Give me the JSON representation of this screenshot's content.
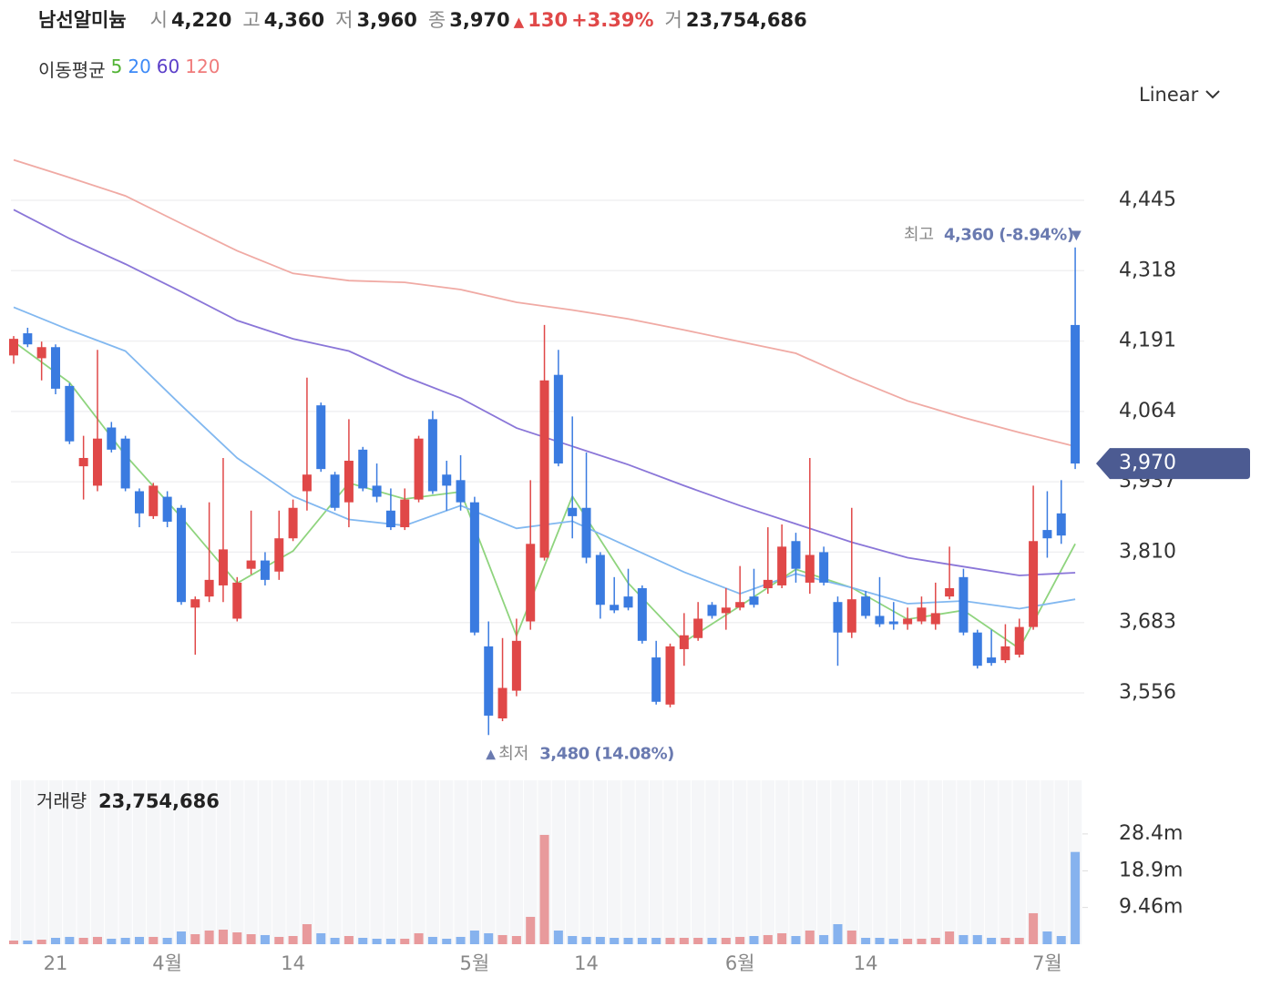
{
  "header": {
    "name": "남선알미늄",
    "quotes": [
      {
        "label": "시",
        "value": "4,220"
      },
      {
        "label": "고",
        "value": "4,360"
      },
      {
        "label": "저",
        "value": "3,960"
      },
      {
        "label": "종",
        "value": "3,970"
      }
    ],
    "change": "130",
    "change_rate": "+3.39%",
    "volume": {
      "label": "거",
      "value": "23,754,686"
    },
    "scale": "Linear"
  },
  "chart_data": [
    {
      "type": "candlestick",
      "legend_title": "이동평균",
      "up_color": "#e04848",
      "down_color": "#3a7be0",
      "ylim": [
        3418,
        4560
      ],
      "yticks": [
        {
          "value": 3556,
          "label": "3,556"
        },
        {
          "value": 3683,
          "label": "3,683"
        },
        {
          "value": 3810,
          "label": "3,810"
        },
        {
          "value": 3937,
          "label": "3,937"
        },
        {
          "value": 4064,
          "label": "4,064"
        },
        {
          "value": 4191,
          "label": "4,191"
        },
        {
          "value": 4318,
          "label": "4,318"
        },
        {
          "value": 4445,
          "label": "4,445"
        }
      ],
      "grid": true,
      "open": [
        4165,
        4205,
        4160,
        4180,
        4110,
        3965,
        3930,
        4035,
        4015,
        3920,
        3875,
        3910,
        3890,
        3710,
        3730,
        3750,
        3690,
        3780,
        3795,
        3775,
        3835,
        3920,
        4075,
        3950,
        3900,
        3995,
        3930,
        3885,
        3855,
        3905,
        4050,
        3950,
        3940,
        3900,
        3640,
        3510,
        3560,
        3685,
        3800,
        4130,
        3890,
        3890,
        3805,
        3715,
        3730,
        3745,
        3620,
        3535,
        3635,
        3655,
        3715,
        3700,
        3710,
        3730,
        3745,
        3750,
        3830,
        3755,
        3810,
        3720,
        3665,
        3730,
        3695,
        3685,
        3680,
        3685,
        3680,
        3730,
        3765,
        3665,
        3620,
        3615,
        3625,
        3675,
        3850,
        3880,
        4220
      ],
      "high": [
        4200,
        4215,
        4190,
        4185,
        4115,
        4020,
        4175,
        4045,
        4020,
        3925,
        3935,
        3920,
        3895,
        3730,
        3900,
        3980,
        3765,
        3885,
        3810,
        3885,
        3905,
        4125,
        4080,
        3955,
        4050,
        4000,
        3970,
        3925,
        3925,
        4020,
        4065,
        3975,
        3985,
        3910,
        3685,
        3655,
        3690,
        3940,
        4220,
        4175,
        4055,
        3990,
        3810,
        3765,
        3780,
        3750,
        3650,
        3645,
        3700,
        3720,
        3720,
        3745,
        3785,
        3780,
        3855,
        3860,
        3845,
        3980,
        3820,
        3730,
        3890,
        3740,
        3765,
        3720,
        3710,
        3730,
        3755,
        3820,
        3780,
        3670,
        3670,
        3680,
        3690,
        3930,
        3920,
        3940,
        4360
      ],
      "low": [
        4150,
        4180,
        4120,
        4095,
        4005,
        3905,
        3920,
        3990,
        3920,
        3855,
        3870,
        3855,
        3715,
        3625,
        3720,
        3720,
        3685,
        3770,
        3750,
        3760,
        3830,
        3885,
        3955,
        3885,
        3855,
        3920,
        3900,
        3850,
        3850,
        3900,
        3915,
        3885,
        3885,
        3660,
        3480,
        3505,
        3550,
        3670,
        3795,
        3965,
        3835,
        3790,
        3690,
        3700,
        3705,
        3645,
        3535,
        3530,
        3605,
        3650,
        3690,
        3670,
        3705,
        3710,
        3735,
        3745,
        3755,
        3735,
        3750,
        3605,
        3655,
        3690,
        3675,
        3670,
        3670,
        3680,
        3670,
        3725,
        3660,
        3600,
        3605,
        3610,
        3620,
        3670,
        3800,
        3825,
        3960
      ],
      "close": [
        4195,
        4185,
        4180,
        4105,
        4010,
        3980,
        4015,
        3995,
        3925,
        3880,
        3930,
        3865,
        3720,
        3725,
        3760,
        3815,
        3755,
        3795,
        3760,
        3835,
        3890,
        3950,
        3960,
        3890,
        3975,
        3925,
        3910,
        3855,
        3905,
        4015,
        3920,
        3930,
        3900,
        3665,
        3515,
        3565,
        3650,
        3825,
        4120,
        3970,
        3875,
        3800,
        3715,
        3705,
        3710,
        3650,
        3540,
        3640,
        3660,
        3690,
        3695,
        3710,
        3720,
        3715,
        3760,
        3820,
        3780,
        3805,
        3755,
        3665,
        3725,
        3695,
        3680,
        3680,
        3690,
        3710,
        3700,
        3745,
        3665,
        3605,
        3610,
        3640,
        3675,
        3830,
        3835,
        3840,
        3970
      ],
      "series": [
        {
          "name": "5",
          "color": "#52b335",
          "line_color": "#8fd47e",
          "x": [
            0,
            4,
            8,
            12,
            16,
            20,
            24,
            28,
            32,
            36,
            40,
            44,
            48,
            52,
            56,
            60,
            64,
            68,
            72,
            76
          ],
          "values": [
            4190,
            4116,
            3985,
            3873,
            3754,
            3812,
            3935,
            3906,
            3919,
            3659,
            3911,
            3754,
            3648,
            3713,
            3779,
            3746,
            3689,
            3705,
            3636,
            3825
          ]
        },
        {
          "name": "20",
          "color": "#3d8af7",
          "line_color": "#82b8f0",
          "x": [
            0,
            4,
            8,
            12,
            16,
            20,
            24,
            28,
            32,
            36,
            40,
            44,
            48,
            52,
            56,
            60,
            64,
            68,
            72,
            76
          ],
          "values": [
            4252,
            4211,
            4173,
            4075,
            3980,
            3911,
            3869,
            3858,
            3894,
            3853,
            3866,
            3820,
            3774,
            3735,
            3771,
            3746,
            3717,
            3722,
            3708,
            3725
          ]
        },
        {
          "name": "60",
          "color": "#5b3fc9",
          "line_color": "#8a76d8",
          "x": [
            0,
            4,
            8,
            12,
            16,
            20,
            24,
            28,
            32,
            36,
            40,
            44,
            48,
            52,
            56,
            60,
            64,
            68,
            72,
            76
          ],
          "values": [
            4428,
            4376,
            4330,
            4280,
            4228,
            4195,
            4173,
            4127,
            4088,
            4034,
            4001,
            3968,
            3930,
            3894,
            3861,
            3828,
            3800,
            3784,
            3768,
            3773
          ]
        },
        {
          "name": "120",
          "color": "#f07b7b",
          "line_color": "#f0aaa4",
          "x": [
            0,
            4,
            8,
            12,
            16,
            20,
            24,
            28,
            32,
            36,
            40,
            44,
            48,
            52,
            56,
            60,
            64,
            68,
            72,
            76
          ],
          "values": [
            4518,
            4486,
            4453,
            4403,
            4354,
            4313,
            4300,
            4297,
            4284,
            4261,
            4247,
            4231,
            4211,
            4190,
            4169,
            4124,
            4083,
            4053,
            4026,
            4001
          ]
        }
      ],
      "annotations": [
        {
          "label": "최고",
          "text": "4,360 (-8.94%)"
        },
        {
          "label": "최저",
          "text": "3,480 (14.08%)"
        }
      ]
    },
    {
      "type": "bar",
      "title": "거래량",
      "subtitle": "23,754,686",
      "up_color": "#e89a9c",
      "down_color": "#86b2ee",
      "ylim": [
        0,
        42200000
      ],
      "yticks": [
        {
          "value": 9460000,
          "label": "9.46m"
        },
        {
          "value": 18900000,
          "label": "18.9m"
        },
        {
          "value": 28400000,
          "label": "28.4m"
        }
      ],
      "categories": [
        null,
        null,
        null,
        "21",
        null,
        null,
        null,
        null,
        null,
        null,
        null,
        "4월",
        null,
        null,
        null,
        null,
        null,
        null,
        null,
        null,
        "14",
        null,
        null,
        null,
        null,
        null,
        null,
        null,
        null,
        null,
        null,
        null,
        null,
        "5월",
        null,
        null,
        null,
        null,
        null,
        null,
        null,
        "14",
        null,
        null,
        null,
        null,
        null,
        null,
        null,
        null,
        null,
        null,
        "6월",
        null,
        null,
        null,
        null,
        null,
        null,
        null,
        null,
        "14",
        null,
        null,
        null,
        null,
        null,
        null,
        null,
        null,
        null,
        null,
        null,
        null,
        "7월",
        null,
        null
      ],
      "values": [
        940000,
        940000,
        1170000,
        1640000,
        1880000,
        1640000,
        1880000,
        1410000,
        1640000,
        1880000,
        1880000,
        1640000,
        3280000,
        2580000,
        3520000,
        3750000,
        3050000,
        2580000,
        2350000,
        1880000,
        2110000,
        5160000,
        2820000,
        1640000,
        2110000,
        1640000,
        1410000,
        1410000,
        1410000,
        2820000,
        1880000,
        1410000,
        1880000,
        3520000,
        2820000,
        2350000,
        2110000,
        7040000,
        28150000,
        3520000,
        2110000,
        1880000,
        1880000,
        1640000,
        1640000,
        1640000,
        1640000,
        1640000,
        1640000,
        1640000,
        1640000,
        1640000,
        1880000,
        2110000,
        2350000,
        2820000,
        2110000,
        3520000,
        2350000,
        5160000,
        3520000,
        1640000,
        1640000,
        1410000,
        1410000,
        1410000,
        1640000,
        3280000,
        2350000,
        2350000,
        1640000,
        1640000,
        1640000,
        7980000,
        3280000,
        2110000,
        23754686
      ]
    }
  ]
}
